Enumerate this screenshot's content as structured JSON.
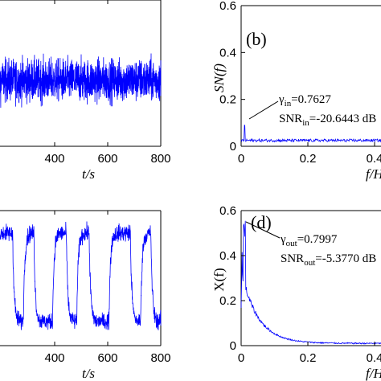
{
  "chart_data": [
    {
      "panel": "a",
      "type": "line",
      "series_color": "#0000ff",
      "xlabel": "t/s",
      "xlim": [
        200,
        800
      ],
      "x_ticks": [
        "400",
        "600",
        "800"
      ],
      "signal": "noisy input signal, mean ~0, amplitude ~±1"
    },
    {
      "panel": "b",
      "type": "line",
      "letter": "(b)",
      "series_color": "#0000ff",
      "xlabel": "f/Hz",
      "ylabel": "SN(f)",
      "ylim": [
        0,
        0.6
      ],
      "xlim": [
        0,
        0.5
      ],
      "x_ticks": [
        "0",
        "0.2",
        "0.4"
      ],
      "y_ticks": [
        "0",
        "0.2",
        "0.4",
        "0.6"
      ],
      "baseline": 0.025,
      "peak": {
        "x": 0.01,
        "y": 0.09
      },
      "annotation": {
        "gamma_symbol": "γ",
        "gamma_sub": "in",
        "gamma_value": "=0.7627",
        "snr_label": "SNR",
        "snr_sub": "in",
        "snr_value": "=-20.6443 dB"
      }
    },
    {
      "panel": "c",
      "type": "line",
      "series_color": "#0000ff",
      "xlabel": "t/s",
      "xlim": [
        200,
        800
      ],
      "x_ticks": [
        "400",
        "600",
        "800"
      ],
      "signal": "bistable switching output"
    },
    {
      "panel": "d",
      "type": "line",
      "letter": "(d)",
      "series_color": "#0000ff",
      "xlabel": "f/Hz",
      "ylabel": "X(f)",
      "ylim": [
        0,
        0.6
      ],
      "xlim": [
        0,
        0.5
      ],
      "x_ticks": [
        "0",
        "0.2",
        "0.4"
      ],
      "y_ticks": [
        "0",
        "0.2",
        "0.4",
        "0.6"
      ],
      "peak": {
        "x": 0.01,
        "y": 0.52
      },
      "annotation": {
        "gamma_symbol": "γ",
        "gamma_sub": "out",
        "gamma_value": "=0.7997",
        "snr_label": "SNR",
        "snr_sub": "out",
        "snr_value": "=-5.3770 dB"
      }
    }
  ]
}
